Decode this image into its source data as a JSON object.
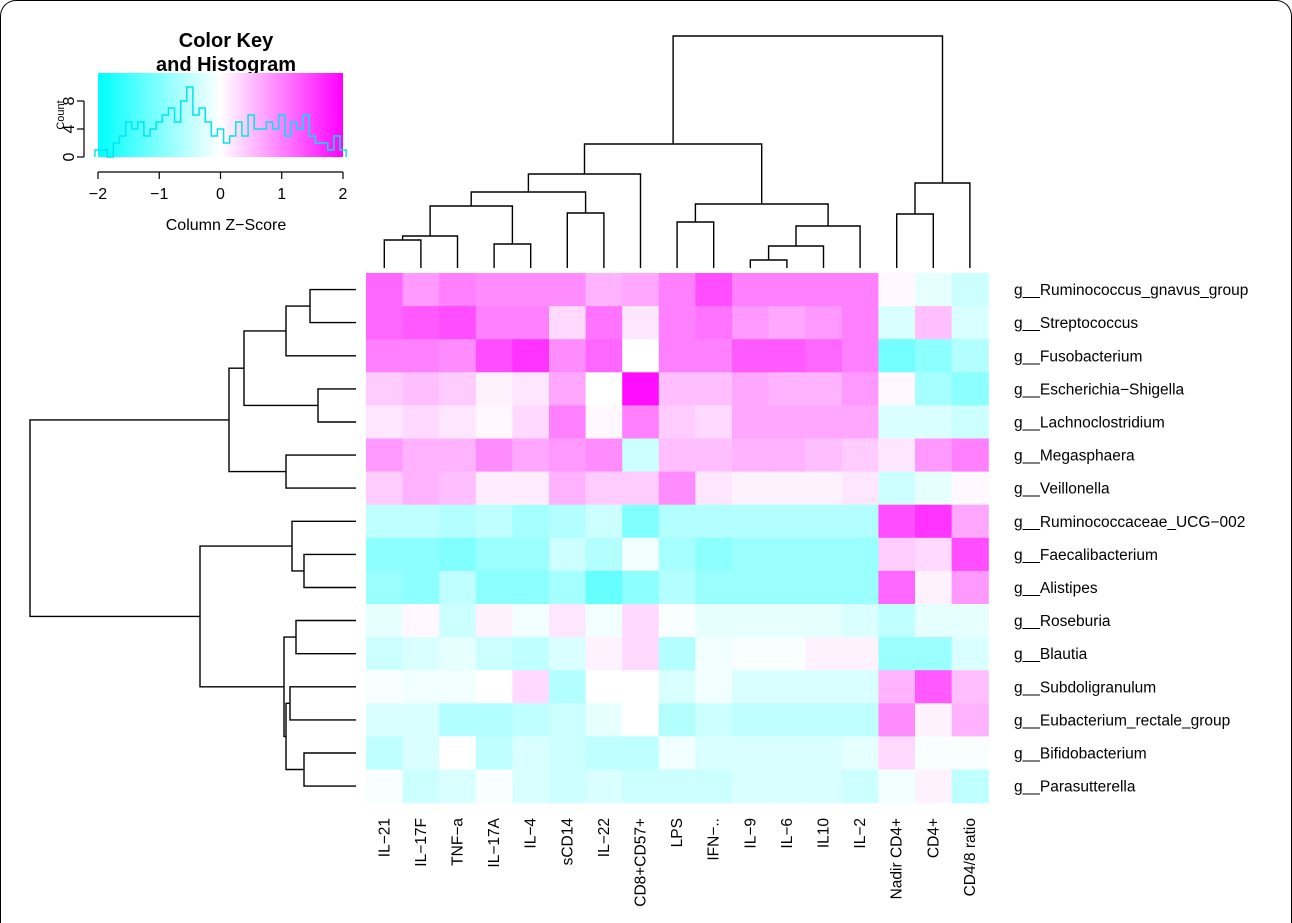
{
  "chart_data": {
    "type": "heatmap",
    "columns": [
      "IL−21",
      "IL−17F",
      "TNF−a",
      "IL−17A",
      "IL−4",
      "sCD14",
      "IL−22",
      "CD8+CD57+",
      "LPS",
      "IFN−..",
      "IL−9",
      "IL−6",
      "IL10",
      "IL−2",
      "Nadir CD4+",
      "CD4+",
      "CD4/8 ratio"
    ],
    "rows": [
      "g__Ruminococcus_gnavus_group",
      "g__Streptococcus",
      "g__Fusobacterium",
      "g__Escherichia−Shigella",
      "g__Lachnoclostridium",
      "g__Megasphaera",
      "g__Veillonella",
      "g__Ruminococcaceae_UCG−002",
      "g__Faecalibacterium",
      "g__Alistipes",
      "g__Roseburia",
      "g__Blautia",
      "g__Subdoligranulum",
      "g__Eubacterium_rectale_group",
      "g__Bifidobacterium",
      "g__Parasutterella"
    ],
    "values": [
      [
        1.2,
        0.8,
        1.0,
        0.9,
        0.9,
        0.9,
        0.6,
        0.7,
        1.0,
        1.4,
        1.0,
        1.0,
        1.0,
        1.0,
        0.05,
        -0.2,
        -0.4
      ],
      [
        1.2,
        1.3,
        1.4,
        1.0,
        1.0,
        0.3,
        1.1,
        0.2,
        1.0,
        1.1,
        0.8,
        0.7,
        0.8,
        1.0,
        -0.3,
        0.5,
        -0.3
      ],
      [
        1.0,
        1.0,
        0.9,
        1.4,
        1.6,
        0.9,
        1.2,
        0.0,
        1.0,
        1.0,
        1.3,
        1.3,
        1.2,
        1.0,
        -1.1,
        -0.9,
        -0.6
      ],
      [
        0.4,
        0.5,
        0.4,
        0.1,
        0.2,
        0.7,
        0.0,
        1.9,
        0.5,
        0.5,
        0.7,
        0.6,
        0.6,
        0.8,
        0.05,
        -0.7,
        -0.9
      ],
      [
        0.2,
        0.3,
        0.2,
        0.05,
        0.3,
        1.0,
        0.05,
        1.0,
        0.4,
        0.3,
        0.7,
        0.7,
        0.7,
        0.7,
        -0.3,
        -0.3,
        -0.4
      ],
      [
        0.8,
        0.6,
        0.6,
        0.9,
        0.7,
        0.8,
        0.9,
        -0.4,
        0.5,
        0.5,
        0.6,
        0.6,
        0.5,
        0.4,
        0.2,
        0.8,
        1.0
      ],
      [
        0.4,
        0.6,
        0.5,
        0.15,
        0.15,
        0.6,
        0.4,
        0.4,
        0.9,
        0.2,
        0.1,
        0.1,
        0.1,
        0.2,
        -0.4,
        -0.2,
        0.05
      ],
      [
        -0.5,
        -0.5,
        -0.6,
        -0.5,
        -0.7,
        -0.6,
        -0.4,
        -1.0,
        -0.6,
        -0.6,
        -0.6,
        -0.6,
        -0.6,
        -0.6,
        1.4,
        1.6,
        0.7
      ],
      [
        -0.9,
        -0.9,
        -1.0,
        -0.8,
        -0.8,
        -0.4,
        -0.6,
        -0.1,
        -0.7,
        -0.9,
        -0.8,
        -0.8,
        -0.8,
        -0.8,
        0.4,
        0.3,
        1.4
      ],
      [
        -0.8,
        -0.9,
        -0.5,
        -0.9,
        -0.9,
        -0.7,
        -1.2,
        -0.9,
        -0.6,
        -0.8,
        -0.8,
        -0.8,
        -0.8,
        -0.8,
        1.2,
        0.1,
        0.8
      ],
      [
        -0.2,
        0.05,
        -0.4,
        0.1,
        -0.1,
        0.2,
        -0.1,
        0.3,
        -0.05,
        -0.2,
        -0.2,
        -0.2,
        -0.2,
        -0.3,
        -0.5,
        -0.2,
        -0.2
      ],
      [
        -0.4,
        -0.3,
        -0.2,
        -0.4,
        -0.5,
        -0.3,
        0.1,
        0.3,
        -0.6,
        -0.1,
        -0.05,
        -0.05,
        0.1,
        0.1,
        -0.8,
        -0.8,
        -0.3
      ],
      [
        -0.05,
        -0.1,
        -0.1,
        0.0,
        0.3,
        -0.6,
        0.0,
        0.0,
        -0.3,
        -0.1,
        -0.3,
        -0.3,
        -0.3,
        -0.3,
        0.6,
        1.3,
        0.5
      ],
      [
        -0.3,
        -0.3,
        -0.6,
        -0.6,
        -0.5,
        -0.4,
        -0.2,
        0.0,
        -0.6,
        -0.4,
        -0.5,
        -0.5,
        -0.5,
        -0.5,
        0.9,
        0.1,
        0.6
      ],
      [
        -0.5,
        -0.3,
        0.0,
        -0.5,
        -0.3,
        -0.4,
        -0.5,
        -0.5,
        -0.1,
        -0.3,
        -0.3,
        -0.3,
        -0.3,
        -0.2,
        0.3,
        -0.05,
        -0.05
      ],
      [
        -0.05,
        -0.4,
        -0.3,
        -0.05,
        -0.3,
        -0.4,
        -0.3,
        -0.4,
        -0.4,
        -0.4,
        -0.3,
        -0.3,
        -0.3,
        -0.4,
        -0.1,
        0.1,
        -0.5
      ]
    ],
    "color_low": "#00ffff",
    "color_mid": "#ffffff",
    "color_high": "#ff00ff",
    "color_range": [
      -2,
      2
    ],
    "color_key": {
      "title_line1": "Color Key",
      "title_line2": "and Histogram",
      "xlabel": "Column Z−Score",
      "ylabel": "Count",
      "xticks": [
        "−2",
        "−1",
        "0",
        "1",
        "2"
      ],
      "yticks": [
        "0",
        "4",
        "8"
      ],
      "x_range": [
        -2,
        2
      ],
      "y_range": [
        0,
        12
      ],
      "histogram_color": "#00e5ee",
      "histogram_x": [
        -2.0,
        -1.9,
        -1.8,
        -1.7,
        -1.6,
        -1.5,
        -1.4,
        -1.3,
        -1.2,
        -1.1,
        -1.0,
        -0.9,
        -0.8,
        -0.7,
        -0.6,
        -0.5,
        -0.4,
        -0.3,
        -0.2,
        -0.1,
        0.0,
        0.1,
        0.2,
        0.3,
        0.4,
        0.5,
        0.6,
        0.7,
        0.8,
        0.9,
        1.0,
        1.1,
        1.2,
        1.3,
        1.4,
        1.5,
        1.6,
        1.7,
        1.8,
        1.9,
        2.0
      ],
      "histogram_counts": [
        1,
        1,
        0,
        2,
        3,
        5,
        4,
        5,
        3,
        4,
        5,
        6,
        7,
        5,
        8,
        10,
        6,
        7,
        5,
        3,
        4,
        2,
        3,
        5,
        3,
        6,
        4,
        4,
        5,
        4,
        6,
        3,
        5,
        4,
        6,
        3,
        2,
        2,
        1,
        3,
        1
      ]
    }
  }
}
